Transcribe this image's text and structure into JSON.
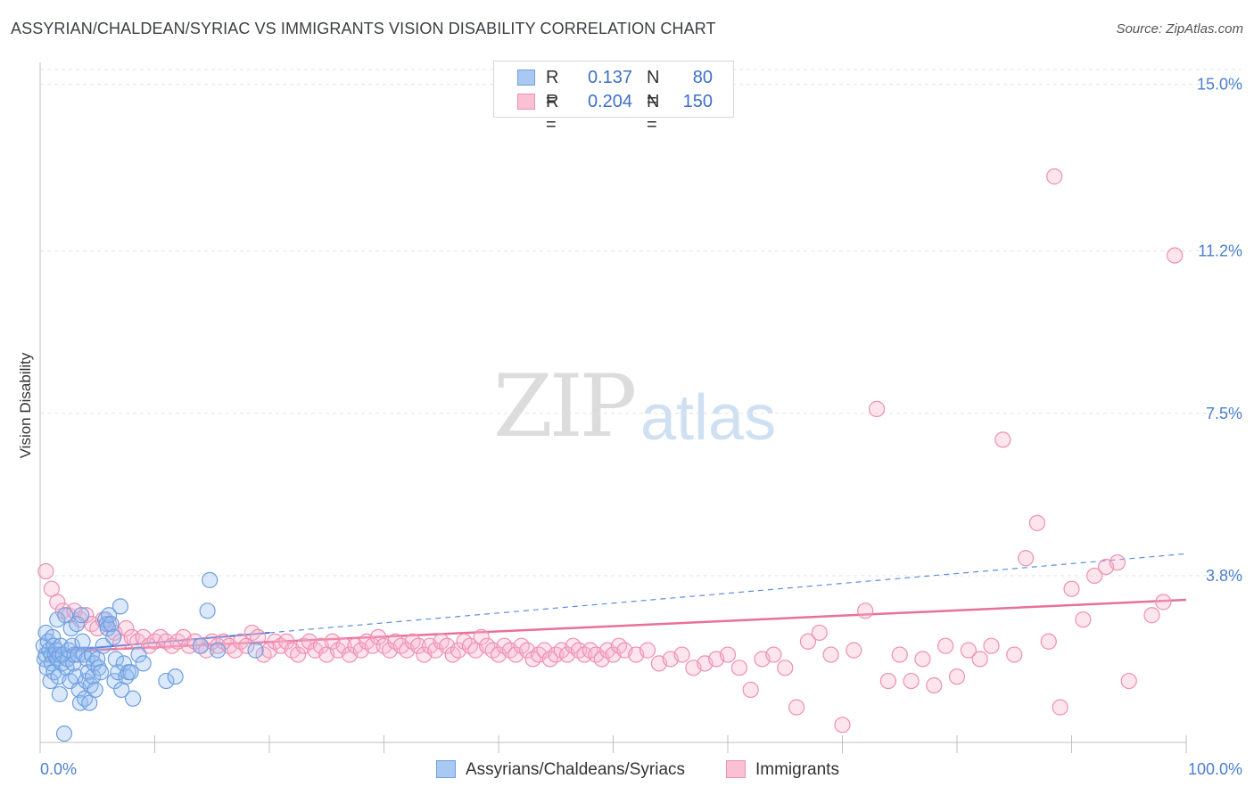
{
  "title": "ASSYRIAN/CHALDEAN/SYRIAC VS IMMIGRANTS VISION DISABILITY CORRELATION CHART",
  "source": "Source: ZipAtlas.com",
  "watermark": {
    "zip": "ZIP",
    "atlas": "atlas"
  },
  "stats": [
    {
      "r_label": "R =",
      "r_value": "0.137",
      "n_label": "N =",
      "n_value": "80",
      "color": "#a9c8f2",
      "border": "#6f9fe0"
    },
    {
      "r_label": "R =",
      "r_value": "0.204",
      "n_label": "N =",
      "n_value": "150",
      "color": "#f9c1d3",
      "border": "#ee8fb0"
    }
  ],
  "legend": [
    {
      "label": "Assyrians/Chaldeans/Syriacs",
      "color": "#a9c8f2",
      "border": "#6f9fe0"
    },
    {
      "label": "Immigrants",
      "color": "#f9c1d3",
      "border": "#ee8fb0"
    }
  ],
  "chart_data": {
    "type": "scatter",
    "title": "ASSYRIAN/CHALDEAN/SYRIAC VS IMMIGRANTS VISION DISABILITY CORRELATION CHART",
    "xlabel": "",
    "ylabel": "Vision Disability",
    "xlim": [
      0,
      100
    ],
    "ylim": [
      0,
      15.5
    ],
    "x_tick_labels": [
      "0.0%",
      "100.0%"
    ],
    "y_ticks": [
      3.8,
      7.5,
      11.2,
      15.0
    ],
    "y_tick_labels": [
      "3.8%",
      "7.5%",
      "11.2%",
      "15.0%"
    ],
    "grid": true,
    "series": [
      {
        "name": "Assyrians/Chaldeans/Syriacs",
        "color": "#6f9fe0",
        "fill": "rgba(150,190,240,0.35)",
        "trend": {
          "x": [
            0,
            100
          ],
          "y": [
            2.05,
            4.3
          ],
          "solid_until": 20
        },
        "points": [
          [
            0.3,
            2.2
          ],
          [
            0.4,
            1.9
          ],
          [
            0.5,
            2.5
          ],
          [
            0.5,
            2.0
          ],
          [
            0.6,
            1.7
          ],
          [
            0.7,
            2.3
          ],
          [
            0.8,
            2.1
          ],
          [
            0.9,
            1.4
          ],
          [
            1.0,
            2.0
          ],
          [
            1.0,
            1.8
          ],
          [
            1.1,
            2.4
          ],
          [
            1.2,
            2.2
          ],
          [
            1.2,
            1.6
          ],
          [
            1.3,
            2.0
          ],
          [
            1.4,
            2.1
          ],
          [
            1.5,
            1.9
          ],
          [
            1.5,
            2.8
          ],
          [
            1.6,
            1.5
          ],
          [
            1.7,
            2.0
          ],
          [
            1.7,
            1.1
          ],
          [
            1.8,
            2.2
          ],
          [
            1.9,
            1.8
          ],
          [
            2.0,
            2.0
          ],
          [
            2.1,
            0.2
          ],
          [
            2.2,
            2.9
          ],
          [
            2.3,
            1.7
          ],
          [
            2.4,
            1.9
          ],
          [
            2.5,
            2.1
          ],
          [
            2.6,
            1.4
          ],
          [
            2.7,
            2.6
          ],
          [
            2.8,
            2.2
          ],
          [
            2.9,
            1.8
          ],
          [
            3.0,
            2.0
          ],
          [
            3.1,
            1.5
          ],
          [
            3.2,
            2.7
          ],
          [
            3.3,
            2.0
          ],
          [
            3.4,
            1.2
          ],
          [
            3.5,
            0.9
          ],
          [
            3.6,
            2.9
          ],
          [
            3.7,
            2.3
          ],
          [
            3.8,
            2.0
          ],
          [
            3.9,
            1.0
          ],
          [
            4.0,
            1.4
          ],
          [
            4.1,
            1.9
          ],
          [
            4.2,
            1.6
          ],
          [
            4.3,
            0.9
          ],
          [
            4.4,
            1.3
          ],
          [
            4.5,
            2.0
          ],
          [
            4.6,
            1.5
          ],
          [
            4.7,
            1.8
          ],
          [
            4.8,
            1.2
          ],
          [
            5.0,
            1.9
          ],
          [
            5.1,
            1.7
          ],
          [
            5.3,
            1.6
          ],
          [
            5.5,
            2.2
          ],
          [
            5.7,
            2.8
          ],
          [
            5.8,
            2.7
          ],
          [
            5.9,
            2.6
          ],
          [
            6.0,
            2.9
          ],
          [
            6.2,
            2.7
          ],
          [
            6.4,
            2.4
          ],
          [
            6.5,
            1.4
          ],
          [
            6.6,
            1.9
          ],
          [
            6.8,
            1.6
          ],
          [
            7.0,
            3.1
          ],
          [
            7.1,
            1.2
          ],
          [
            7.3,
            1.8
          ],
          [
            7.5,
            1.5
          ],
          [
            7.7,
            1.6
          ],
          [
            7.9,
            1.6
          ],
          [
            8.1,
            1.0
          ],
          [
            8.6,
            2.0
          ],
          [
            9.0,
            1.8
          ],
          [
            11.0,
            1.4
          ],
          [
            11.8,
            1.5
          ],
          [
            14.0,
            2.2
          ],
          [
            14.6,
            3.0
          ],
          [
            14.8,
            3.7
          ],
          [
            15.5,
            2.1
          ],
          [
            18.8,
            2.1
          ]
        ]
      },
      {
        "name": "Immigrants",
        "color": "#ee8fb0",
        "fill": "rgba(249,180,205,0.35)",
        "trend": {
          "x": [
            0,
            100
          ],
          "y": [
            2.05,
            3.25
          ]
        },
        "points": [
          [
            0.5,
            3.9
          ],
          [
            1.0,
            3.5
          ],
          [
            1.5,
            3.2
          ],
          [
            2.0,
            3.0
          ],
          [
            2.5,
            2.9
          ],
          [
            3.0,
            3.0
          ],
          [
            3.5,
            2.8
          ],
          [
            4.0,
            2.9
          ],
          [
            4.5,
            2.7
          ],
          [
            5.0,
            2.6
          ],
          [
            5.5,
            2.8
          ],
          [
            6.0,
            2.7
          ],
          [
            6.5,
            2.5
          ],
          [
            7.0,
            2.3
          ],
          [
            7.5,
            2.6
          ],
          [
            8.0,
            2.4
          ],
          [
            8.5,
            2.3
          ],
          [
            9.0,
            2.4
          ],
          [
            9.5,
            2.2
          ],
          [
            10.0,
            2.3
          ],
          [
            10.5,
            2.4
          ],
          [
            11.0,
            2.3
          ],
          [
            11.5,
            2.2
          ],
          [
            12.0,
            2.3
          ],
          [
            12.5,
            2.4
          ],
          [
            13.0,
            2.2
          ],
          [
            13.5,
            2.3
          ],
          [
            14.0,
            2.2
          ],
          [
            14.5,
            2.1
          ],
          [
            15.0,
            2.3
          ],
          [
            15.5,
            2.2
          ],
          [
            16.0,
            2.3
          ],
          [
            16.5,
            2.2
          ],
          [
            17.0,
            2.1
          ],
          [
            17.5,
            2.3
          ],
          [
            18.0,
            2.2
          ],
          [
            18.5,
            2.5
          ],
          [
            19.0,
            2.4
          ],
          [
            19.5,
            2.0
          ],
          [
            20.0,
            2.1
          ],
          [
            20.5,
            2.3
          ],
          [
            21.0,
            2.2
          ],
          [
            21.5,
            2.3
          ],
          [
            22.0,
            2.1
          ],
          [
            22.5,
            2.0
          ],
          [
            23.0,
            2.2
          ],
          [
            23.5,
            2.3
          ],
          [
            24.0,
            2.1
          ],
          [
            24.5,
            2.2
          ],
          [
            25.0,
            2.0
          ],
          [
            25.5,
            2.3
          ],
          [
            26.0,
            2.1
          ],
          [
            26.5,
            2.2
          ],
          [
            27.0,
            2.0
          ],
          [
            27.5,
            2.2
          ],
          [
            28.0,
            2.1
          ],
          [
            28.5,
            2.3
          ],
          [
            29.0,
            2.2
          ],
          [
            29.5,
            2.4
          ],
          [
            30.0,
            2.2
          ],
          [
            30.5,
            2.1
          ],
          [
            31.0,
            2.3
          ],
          [
            31.5,
            2.2
          ],
          [
            32.0,
            2.1
          ],
          [
            32.5,
            2.3
          ],
          [
            33.0,
            2.2
          ],
          [
            33.5,
            2.0
          ],
          [
            34.0,
            2.2
          ],
          [
            34.5,
            2.1
          ],
          [
            35.0,
            2.3
          ],
          [
            35.5,
            2.2
          ],
          [
            36.0,
            2.0
          ],
          [
            36.5,
            2.1
          ],
          [
            37.0,
            2.3
          ],
          [
            37.5,
            2.2
          ],
          [
            38.0,
            2.1
          ],
          [
            38.5,
            2.4
          ],
          [
            39.0,
            2.2
          ],
          [
            39.5,
            2.1
          ],
          [
            40.0,
            2.0
          ],
          [
            40.5,
            2.2
          ],
          [
            41.0,
            2.1
          ],
          [
            41.5,
            2.0
          ],
          [
            42.0,
            2.2
          ],
          [
            42.5,
            2.1
          ],
          [
            43.0,
            1.9
          ],
          [
            43.5,
            2.0
          ],
          [
            44.0,
            2.1
          ],
          [
            44.5,
            1.9
          ],
          [
            45.0,
            2.0
          ],
          [
            45.5,
            2.1
          ],
          [
            46.0,
            2.0
          ],
          [
            46.5,
            2.2
          ],
          [
            47.0,
            2.1
          ],
          [
            47.5,
            2.0
          ],
          [
            48.0,
            2.1
          ],
          [
            48.5,
            2.0
          ],
          [
            49.0,
            1.9
          ],
          [
            49.5,
            2.1
          ],
          [
            50.0,
            2.0
          ],
          [
            50.5,
            2.2
          ],
          [
            51.0,
            2.1
          ],
          [
            52.0,
            2.0
          ],
          [
            53.0,
            2.1
          ],
          [
            54.0,
            1.8
          ],
          [
            55.0,
            1.9
          ],
          [
            56.0,
            2.0
          ],
          [
            57.0,
            1.7
          ],
          [
            58.0,
            1.8
          ],
          [
            59.0,
            1.9
          ],
          [
            60.0,
            2.0
          ],
          [
            61.0,
            1.7
          ],
          [
            62.0,
            1.2
          ],
          [
            63.0,
            1.9
          ],
          [
            64.0,
            2.0
          ],
          [
            65.0,
            1.7
          ],
          [
            66.0,
            0.8
          ],
          [
            67.0,
            2.3
          ],
          [
            68.0,
            2.5
          ],
          [
            69.0,
            2.0
          ],
          [
            70.0,
            0.4
          ],
          [
            71.0,
            2.1
          ],
          [
            72.0,
            3.0
          ],
          [
            73.0,
            7.6
          ],
          [
            74.0,
            1.4
          ],
          [
            75.0,
            2.0
          ],
          [
            76.0,
            1.4
          ],
          [
            77.0,
            1.9
          ],
          [
            78.0,
            1.3
          ],
          [
            79.0,
            2.2
          ],
          [
            80.0,
            1.5
          ],
          [
            81.0,
            2.1
          ],
          [
            82.0,
            1.9
          ],
          [
            83.0,
            2.2
          ],
          [
            84.0,
            6.9
          ],
          [
            85.0,
            2.0
          ],
          [
            86.0,
            4.2
          ],
          [
            87.0,
            5.0
          ],
          [
            88.0,
            2.3
          ],
          [
            88.5,
            12.9
          ],
          [
            89.0,
            0.8
          ],
          [
            90.0,
            3.5
          ],
          [
            91.0,
            2.8
          ],
          [
            92.0,
            3.8
          ],
          [
            93.0,
            4.0
          ],
          [
            94.0,
            4.1
          ],
          [
            95.0,
            1.4
          ],
          [
            97.0,
            2.9
          ],
          [
            98.0,
            3.2
          ],
          [
            99.0,
            11.1
          ]
        ]
      }
    ]
  }
}
